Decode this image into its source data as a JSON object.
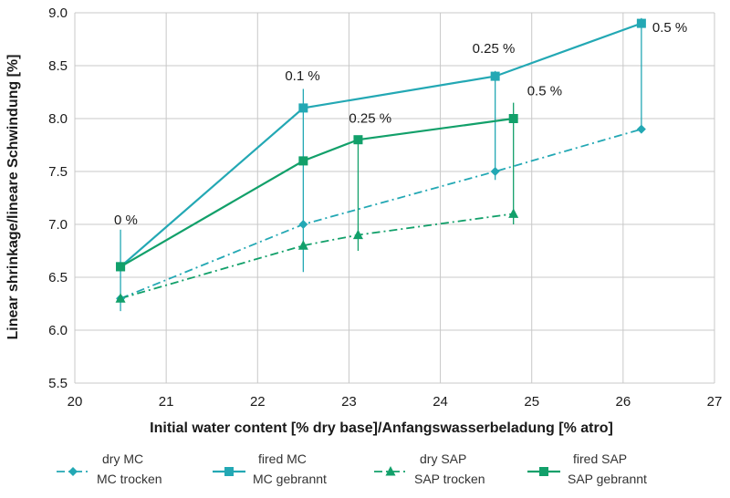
{
  "chart_data": {
    "type": "line",
    "title": "",
    "xlabel": "Initial water content [% dry base]/Anfangswasserbeladung  [% atro]",
    "ylabel": "Linear shrinkage/lineare Schwindung [%]",
    "xlim": [
      20,
      27
    ],
    "ylim": [
      5.5,
      9.0
    ],
    "xticks": [
      "20",
      "21",
      "22",
      "23",
      "24",
      "25",
      "26",
      "27"
    ],
    "yticks": [
      "5.5",
      "6.0",
      "6.5",
      "7.0",
      "7.5",
      "8.0",
      "8.5",
      "9.0"
    ],
    "grid": true,
    "legend_position": "bottom",
    "series": [
      {
        "name": "dry MC",
        "name2": "MC trocken",
        "color": "#23a8b4",
        "style": "dashdot",
        "marker": "diamond",
        "points": [
          [
            20.5,
            6.3
          ],
          [
            22.5,
            7.0
          ],
          [
            24.6,
            7.5
          ],
          [
            26.2,
            7.9
          ]
        ]
      },
      {
        "name": "fired MC",
        "name2": "MC gebrannt",
        "color": "#23a8b4",
        "style": "solid",
        "marker": "square",
        "points": [
          [
            20.5,
            6.6
          ],
          [
            22.5,
            8.1
          ],
          [
            24.6,
            8.4
          ],
          [
            26.2,
            8.9
          ]
        ]
      },
      {
        "name": "dry SAP",
        "name2": "SAP trocken",
        "color": "#12a06a",
        "style": "dashdot",
        "marker": "triangle",
        "points": [
          [
            20.5,
            6.3
          ],
          [
            22.5,
            6.8
          ],
          [
            23.1,
            6.9
          ],
          [
            24.8,
            7.1
          ]
        ]
      },
      {
        "name": "fired SAP",
        "name2": "SAP gebrannt",
        "color": "#12a06a",
        "style": "solid",
        "marker": "square",
        "points": [
          [
            20.5,
            6.6
          ],
          [
            22.5,
            7.6
          ],
          [
            23.1,
            7.8
          ],
          [
            24.8,
            8.0
          ]
        ]
      }
    ],
    "error_bars": [
      {
        "x": 20.5,
        "low": 6.18,
        "high": 6.95,
        "color": "#23a8b4"
      },
      {
        "x": 22.5,
        "low": 6.55,
        "high": 8.28,
        "color": "#23a8b4"
      },
      {
        "x": 23.1,
        "low": 6.75,
        "high": 7.8,
        "color": "#12a06a"
      },
      {
        "x": 24.6,
        "low": 7.42,
        "high": 8.45,
        "color": "#23a8b4"
      },
      {
        "x": 24.8,
        "low": 7.0,
        "high": 8.15,
        "color": "#12a06a"
      },
      {
        "x": 26.2,
        "low": 7.9,
        "high": 8.95,
        "color": "#23a8b4"
      }
    ],
    "annotations": [
      {
        "text": "0 %",
        "x": 20.43,
        "y": 7.0
      },
      {
        "text": "0.1 %",
        "x": 22.3,
        "y": 8.36
      },
      {
        "text": "0.25 %",
        "x": 23.0,
        "y": 7.96
      },
      {
        "text": "0.25 %",
        "x": 24.35,
        "y": 8.62
      },
      {
        "text": "0.5 %",
        "x": 24.95,
        "y": 8.22
      },
      {
        "text": "0.5 %",
        "x": 26.32,
        "y": 8.82
      }
    ]
  }
}
